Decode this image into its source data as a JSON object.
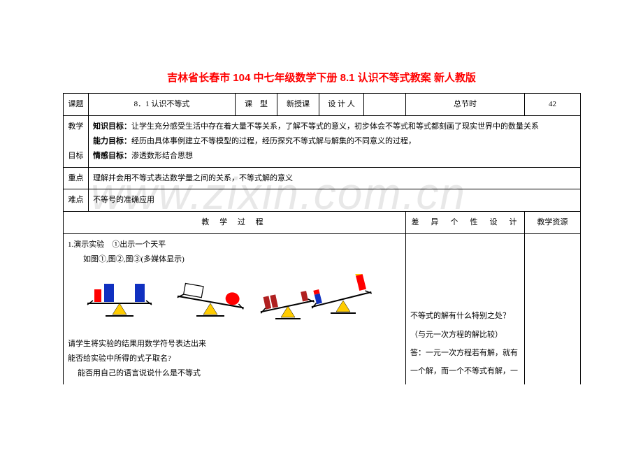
{
  "title": "吉林省长春市 104 中七年级数学下册 8.1 认识不等式教案 新人教版",
  "row1": {
    "label_topic": "课题",
    "topic_value": "8．1 认识不等式",
    "label_type": "课　型",
    "type_value": "新授课",
    "label_designer": "设 计 人",
    "designer_value": "",
    "label_total": "总节时",
    "total_value": "42"
  },
  "goals": {
    "label": "教学目标",
    "l1a": "知识目标：",
    "l1b": "让学生充分感受生活中存在着大量不等关系，了解不等式的意义，初步体会不等式和等式都刻画了现实世界中的数量关系",
    "l2a": "能力目标：",
    "l2b": "经历由具体事例建立不等模型的过程，经历探究不等式解与解集的不同意义的过程，",
    "l3a": "情感目标：",
    "l3b": "渗透数形结合思想"
  },
  "keypoint": {
    "label": "重点",
    "value": "理解并会用不等式表达数学量之间的关系，不等式解的意义"
  },
  "difficulty": {
    "label": "难点",
    "value": "不等号的准确应用"
  },
  "sections": {
    "col1": "教 学 过 程",
    "col2": "差　异　个　性　设　计",
    "col3": "教学资源"
  },
  "body": {
    "p1": "1.演示实验　①出示一个天平",
    "p2": "如图①,图②,图③(多媒体显示)",
    "p3": "请学生将实验的结果用数学符号表达出来",
    "p4": "能否给实验中所得的式子取名?",
    "p5": "能否用自己的语言说说什么是不等式"
  },
  "diff": {
    "d1": "不等式的解有什么特别之处？（与元一次方程的解比较）",
    "d2": "答：一元一次方程若有解，就有一个解，而一个不等式有解，一"
  },
  "colors": {
    "title": "#ff0000",
    "border": "#000000",
    "text": "#000000",
    "red": "#ff0000",
    "blue": "#1030c0",
    "yellow": "#ffcc00",
    "darkred": "#b02020"
  }
}
